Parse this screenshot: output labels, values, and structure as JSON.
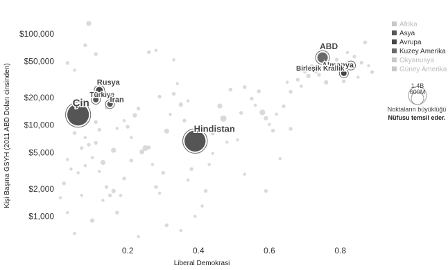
{
  "chart_data": {
    "type": "scatter",
    "xlabel": "Liberal Demokrasi",
    "ylabel": "Kişi Başına GSYH (2011 ABD Doları cinsinden)",
    "x_ticks": [
      "0.2",
      "0.4",
      "0.6",
      "0.8"
    ],
    "x_tick_values": [
      0.2,
      0.4,
      0.6,
      0.8
    ],
    "y_ticks": [
      "$1,000",
      "$2,000",
      "$5,000",
      "$10,000",
      "$20,000",
      "$50,000",
      "$100,000"
    ],
    "y_tick_values": [
      1000,
      2000,
      5000,
      10000,
      20000,
      50000,
      100000
    ],
    "xlim": [
      0.0,
      0.92
    ],
    "ylim": [
      520,
      160000
    ],
    "y_scale": "log",
    "grid": false,
    "legend_position": "top-right",
    "legend": [
      {
        "label": "Afrika",
        "color": "#c8c8c8",
        "active": false
      },
      {
        "label": "Asya",
        "color": "#555555",
        "active": true
      },
      {
        "label": "Avrupa",
        "color": "#444444",
        "active": true
      },
      {
        "label": "Kuzey Amerika",
        "color": "#6a6a6a",
        "active": true
      },
      {
        "label": "Okyanusya",
        "color": "#c8c8c8",
        "active": false
      },
      {
        "label": "Güney Amerika",
        "color": "#c8c8c8",
        "active": false
      }
    ],
    "size_legend": {
      "big": "1.4B",
      "small": "600M",
      "note_line1": "Noktaların büyüklüğü",
      "note_line2": "Nüfusu temsil eder."
    },
    "highlighted": [
      {
        "name": "Çin",
        "x": 0.06,
        "y": 13000,
        "population_m": 1380,
        "region": "Asya"
      },
      {
        "name": "Hindistan",
        "x": 0.39,
        "y": 6700,
        "population_m": 1310,
        "region": "Asya"
      },
      {
        "name": "ABD",
        "x": 0.75,
        "y": 55000,
        "population_m": 320,
        "region": "Kuzey Amerika"
      },
      {
        "name": "Rusya",
        "x": 0.12,
        "y": 24000,
        "population_m": 145,
        "region": "Avrupa"
      },
      {
        "name": "Almanya",
        "x": 0.83,
        "y": 45000,
        "population_m": 82,
        "region": "Avrupa"
      },
      {
        "name": "Türkiye",
        "x": 0.11,
        "y": 19000,
        "population_m": 79,
        "region": "Asya"
      },
      {
        "name": "İran",
        "x": 0.15,
        "y": 17000,
        "population_m": 79,
        "region": "Asya"
      },
      {
        "name": "Birleşik Krallık",
        "x": 0.81,
        "y": 37000,
        "population_m": 65,
        "region": "Avrupa"
      }
    ],
    "background_points": [
      [
        0.09,
        130000,
        8
      ],
      [
        0.08,
        75000,
        6
      ],
      [
        0.03,
        48000,
        6
      ],
      [
        0.05,
        40000,
        5
      ],
      [
        0.11,
        60000,
        6
      ],
      [
        0.26,
        63000,
        6
      ],
      [
        0.28,
        66000,
        5
      ],
      [
        0.33,
        52000,
        5
      ],
      [
        0.01,
        1600,
        5
      ],
      [
        0.02,
        2300,
        6
      ],
      [
        0.03,
        4200,
        5
      ],
      [
        0.04,
        3300,
        5
      ],
      [
        0.05,
        8200,
        6
      ],
      [
        0.06,
        3000,
        5
      ],
      [
        0.07,
        5600,
        6
      ],
      [
        0.08,
        7300,
        5
      ],
      [
        0.09,
        6100,
        6
      ],
      [
        0.1,
        4400,
        5
      ],
      [
        0.11,
        10800,
        6
      ],
      [
        0.12,
        3100,
        5
      ],
      [
        0.13,
        3900,
        8
      ],
      [
        0.14,
        2100,
        6
      ],
      [
        0.16,
        1900,
        7
      ],
      [
        0.18,
        1700,
        5
      ],
      [
        0.19,
        2600,
        6
      ],
      [
        0.2,
        9600,
        6
      ],
      [
        0.21,
        7300,
        5
      ],
      [
        0.22,
        12800,
        7
      ],
      [
        0.23,
        15200,
        6
      ],
      [
        0.24,
        5100,
        8
      ],
      [
        0.25,
        5600,
        9
      ],
      [
        0.27,
        3700,
        5
      ],
      [
        0.28,
        2100,
        6
      ],
      [
        0.29,
        1800,
        5
      ],
      [
        0.3,
        3000,
        6
      ],
      [
        0.31,
        8600,
        8
      ],
      [
        0.32,
        13100,
        5
      ],
      [
        0.33,
        22000,
        6
      ],
      [
        0.35,
        16800,
        7
      ],
      [
        0.36,
        11200,
        6
      ],
      [
        0.37,
        2500,
        5
      ],
      [
        0.38,
        3300,
        6
      ],
      [
        0.4,
        5200,
        9
      ],
      [
        0.41,
        1300,
        5
      ],
      [
        0.42,
        1900,
        6
      ],
      [
        0.43,
        3700,
        5
      ],
      [
        0.44,
        8100,
        6
      ],
      [
        0.45,
        9600,
        5
      ],
      [
        0.46,
        16200,
        8
      ],
      [
        0.47,
        11800,
        10
      ],
      [
        0.48,
        6500,
        5
      ],
      [
        0.49,
        24500,
        6
      ],
      [
        0.51,
        6900,
        5
      ],
      [
        0.52,
        13600,
        6
      ],
      [
        0.53,
        2900,
        5
      ],
      [
        0.55,
        19500,
        6
      ],
      [
        0.56,
        16500,
        5
      ],
      [
        0.57,
        23500,
        6
      ],
      [
        0.58,
        13800,
        9
      ],
      [
        0.59,
        11900,
        7
      ],
      [
        0.6,
        10200,
        5
      ],
      [
        0.61,
        8700,
        6
      ],
      [
        0.62,
        13200,
        5
      ],
      [
        0.63,
        4300,
        5
      ],
      [
        0.64,
        16100,
        6
      ],
      [
        0.65,
        29500,
        5
      ],
      [
        0.66,
        23200,
        6
      ],
      [
        0.68,
        31500,
        6
      ],
      [
        0.69,
        26700,
        5
      ],
      [
        0.7,
        38500,
        6
      ],
      [
        0.71,
        34500,
        7
      ],
      [
        0.72,
        44500,
        6
      ],
      [
        0.73,
        39200,
        8
      ],
      [
        0.74,
        35600,
        6
      ],
      [
        0.76,
        29400,
        7
      ],
      [
        0.77,
        40800,
        6
      ],
      [
        0.78,
        47200,
        5
      ],
      [
        0.79,
        52100,
        6
      ],
      [
        0.8,
        42400,
        5
      ],
      [
        0.81,
        30200,
        6
      ],
      [
        0.82,
        62500,
        5
      ],
      [
        0.84,
        56400,
        6
      ],
      [
        0.85,
        33500,
        5
      ],
      [
        0.86,
        48300,
        6
      ],
      [
        0.87,
        80600,
        6
      ],
      [
        0.88,
        44700,
        5
      ],
      [
        0.89,
        38200,
        6
      ],
      [
        0.07,
        1700,
        5
      ],
      [
        0.1,
        900,
        7
      ],
      [
        0.13,
        1500,
        5
      ],
      [
        0.17,
        1100,
        6
      ],
      [
        0.23,
        600,
        5
      ],
      [
        0.31,
        800,
        6
      ],
      [
        0.35,
        700,
        5
      ],
      [
        0.05,
        650,
        5
      ],
      [
        0.03,
        1100,
        5
      ],
      [
        0.15,
        1700,
        6
      ],
      [
        0.19,
        11200,
        5
      ],
      [
        0.26,
        5700,
        6
      ],
      [
        0.12,
        8900,
        6
      ],
      [
        0.14,
        15600,
        6
      ],
      [
        0.09,
        12400,
        5
      ],
      [
        0.17,
        9200,
        5
      ],
      [
        0.29,
        20500,
        6
      ],
      [
        0.34,
        28500,
        5
      ],
      [
        0.08,
        3600,
        5
      ],
      [
        0.11,
        6400,
        6
      ],
      [
        0.16,
        5300,
        8
      ],
      [
        0.21,
        4100,
        6
      ],
      [
        0.37,
        18400,
        5
      ],
      [
        0.53,
        26100,
        6
      ],
      [
        0.44,
        4900,
        5
      ],
      [
        0.59,
        1900,
        6
      ],
      [
        0.66,
        9100,
        6
      ],
      [
        0.39,
        1000,
        5
      ]
    ]
  }
}
